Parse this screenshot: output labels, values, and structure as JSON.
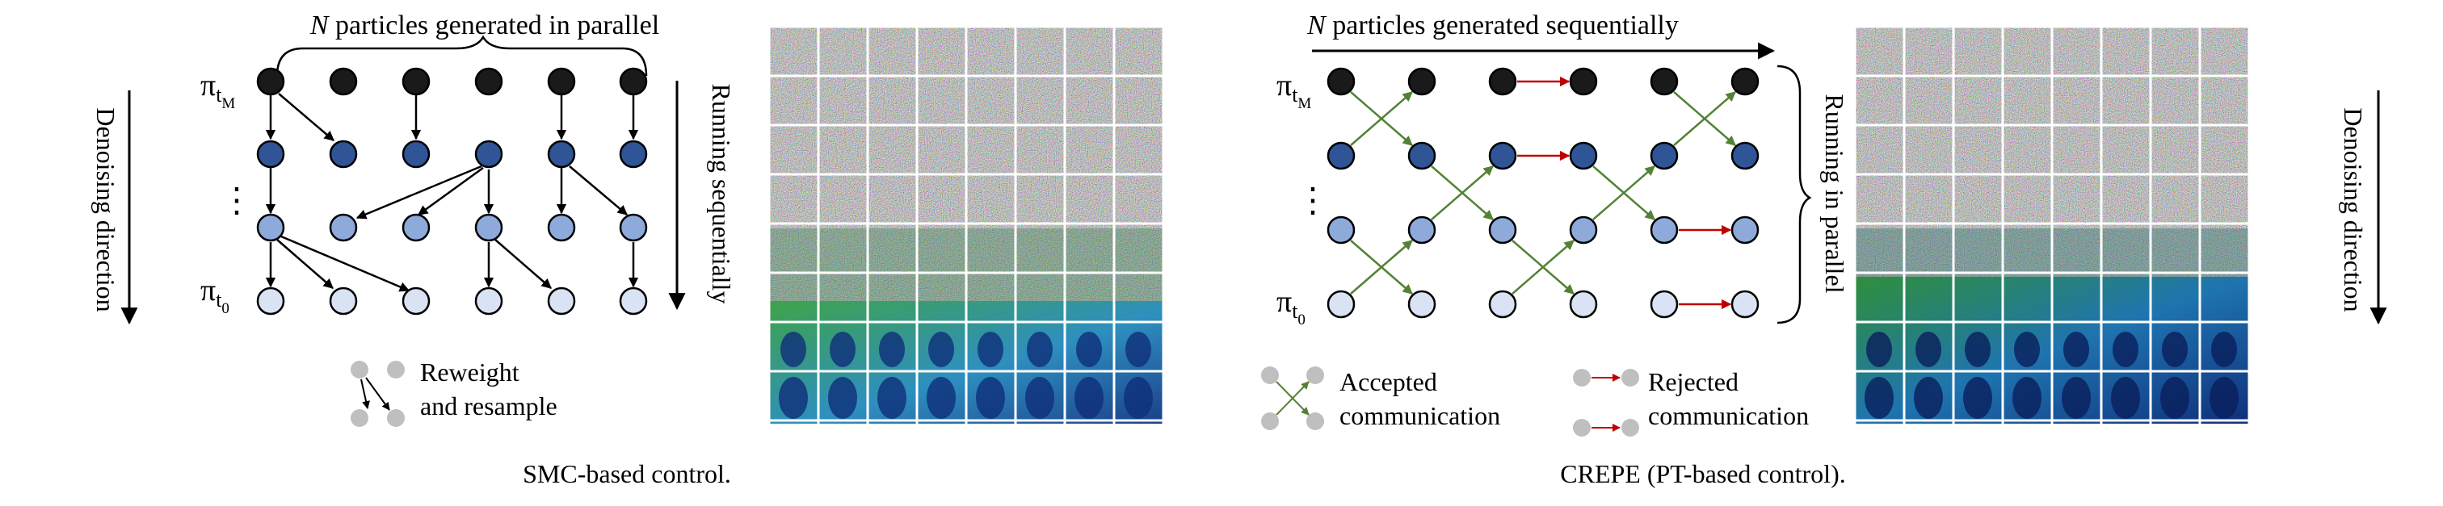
{
  "left_panel": {
    "top_label_italic": "N",
    "top_label_rest": " particles generated in parallel",
    "side_label": "Running sequentially",
    "direction_label": "Denoising direction",
    "legend_line1": "Reweight",
    "legend_line2": "and resample",
    "caption": "SMC-based control.",
    "symbol_top": "π",
    "symbol_top_sub": "t",
    "symbol_top_subsub": "M",
    "symbol_bottom": "π",
    "symbol_bottom_sub": "t",
    "symbol_bottom_subsub": "0",
    "ellipsis": "⋮"
  },
  "right_panel": {
    "top_label_italic": "N",
    "top_label_rest": " particles generated sequentially",
    "side_label": "Running in parallel",
    "direction_label": "Denoising direction",
    "legend_accepted_line1": "Accepted",
    "legend_accepted_line2": "communication",
    "legend_rejected_line1": "Rejected",
    "legend_rejected_line2": "communication",
    "caption": "CREPE (PT-based control).",
    "symbol_top": "π",
    "symbol_top_sub": "t",
    "symbol_top_subsub": "M",
    "symbol_bottom": "π",
    "symbol_bottom_sub": "t",
    "symbol_bottom_subsub": "0",
    "ellipsis": "⋮"
  },
  "colors": {
    "level_top": "#1a1a1a",
    "level_2": "#2f5597",
    "level_3": "#8eaadb",
    "level_4": "#dae3f3",
    "accepted": "#548235",
    "rejected": "#c00000",
    "legend_gray": "#bfbfbf"
  }
}
